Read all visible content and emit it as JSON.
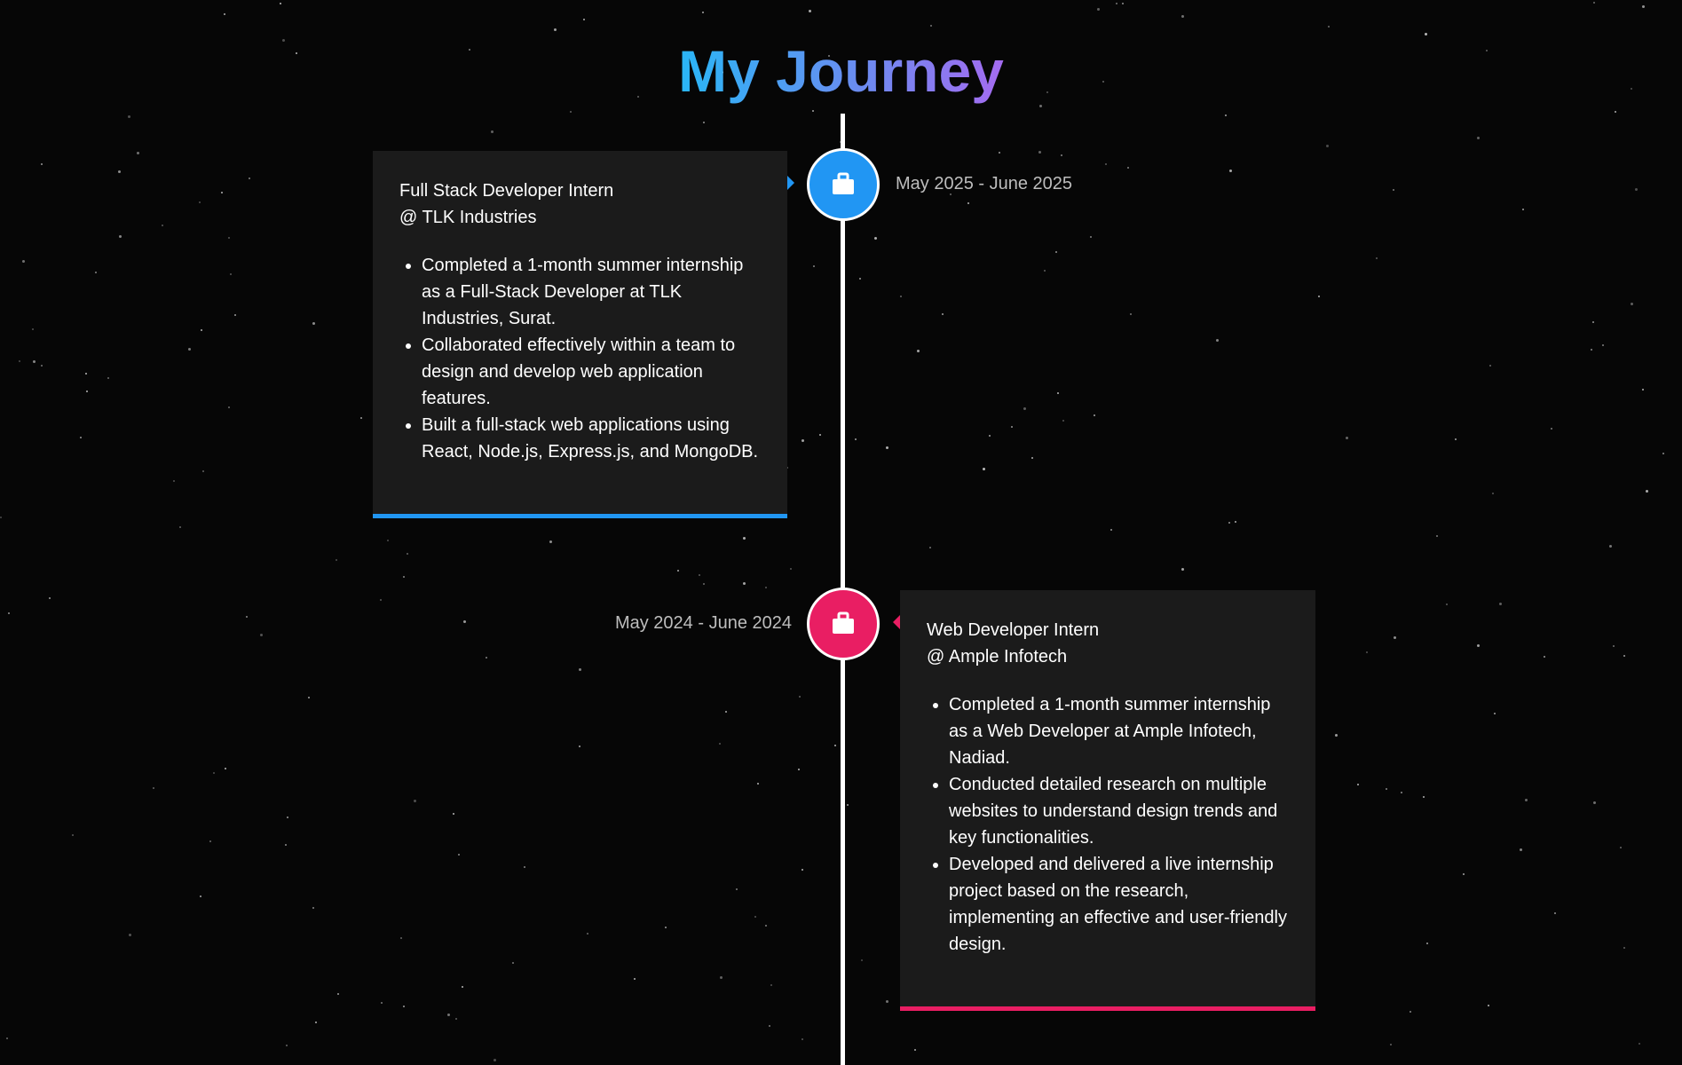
{
  "page": {
    "title": "My Journey"
  },
  "colors": {
    "background": "#060606",
    "card_background": "#1b1b1b",
    "accent_blue": "#2196f3",
    "accent_pink": "#e91e63",
    "timeline_line": "#ffffff",
    "title_gradient": [
      "#29b6f6",
      "#6a8cf0",
      "#a46bf0"
    ]
  },
  "timeline": [
    {
      "icon": "briefcase-icon",
      "accent": "#2196f3",
      "date": "May 2025 - June 2025",
      "role": "Full Stack Developer Intern",
      "company": "@ TLK Industries",
      "bullets": [
        "Completed a 1-month summer internship as a Full-Stack Developer at TLK Industries, Surat.",
        "Collaborated effectively within a team to design and develop web application features.",
        "Built a full-stack web applications using React, Node.js, Express.js, and MongoDB."
      ]
    },
    {
      "icon": "briefcase-icon",
      "accent": "#e91e63",
      "date": "May 2024 - June 2024",
      "role": "Web Developer Intern",
      "company": "@ Ample Infotech",
      "bullets": [
        "Completed a 1-month summer internship as a Web Developer at Ample Infotech, Nadiad.",
        "Conducted detailed research on multiple websites to understand design trends and key functionalities.",
        "Developed and delivered a live internship project based on the research, implementing an effective and user-friendly design."
      ]
    }
  ]
}
